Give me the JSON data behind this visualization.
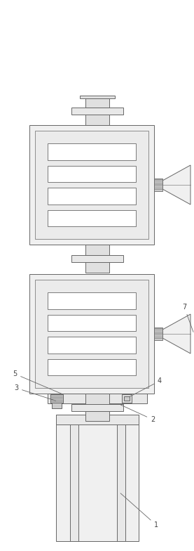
{
  "bg_color": "#ffffff",
  "line_color": "#666666",
  "line_width": 0.7,
  "fig_width": 2.77,
  "fig_height": 7.84,
  "dpi": 100
}
